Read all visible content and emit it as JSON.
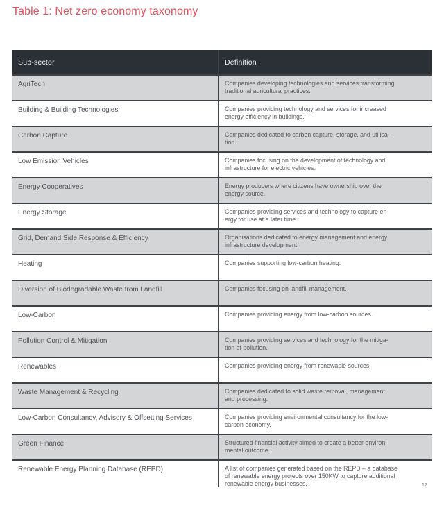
{
  "page": {
    "title": "Table 1: Net zero economy taxonomy",
    "page_number": "12"
  },
  "colors": {
    "accent_title": "#e94b57",
    "header_bg": "#2b3036",
    "header_text": "#eef0f1",
    "row_shaded_bg": "#d4d5d6",
    "row_border": "#3f4246",
    "body_text": "#5a5c60"
  },
  "table": {
    "columns": [
      "Sub-sector",
      "Definition"
    ],
    "rows": [
      {
        "subsector": "AgriTech",
        "definition": "Companies developing technologies and services transforming\ntraditional agricultural practices."
      },
      {
        "subsector": "Building & Building Technologies",
        "definition": "Companies providing technology and services for increased\nenergy efficiency in buildings."
      },
      {
        "subsector": "Carbon Capture",
        "definition": "Companies dedicated to carbon capture, storage, and utilisa-\ntion."
      },
      {
        "subsector": "Low Emission Vehicles",
        "definition": "Companies focusing on the development of technology and\ninfrastructure for electric vehicles."
      },
      {
        "subsector": "Energy Cooperatives",
        "definition": "Energy producers where citizens have ownership over the\nenergy source."
      },
      {
        "subsector": "Energy Storage",
        "definition": "Companies providing services and technology to capture en-\nergy for use at a later time."
      },
      {
        "subsector": "Grid, Demand Side Response & Efficiency",
        "definition": "Organisations dedicated to energy management and energy\ninfrastructure development."
      },
      {
        "subsector": "Heating",
        "definition": "Companies supporting low-carbon heating."
      },
      {
        "subsector": "Diversion of Biodegradable Waste from Landfill",
        "definition": "Companies focusing on landfill management."
      },
      {
        "subsector": "Low-Carbon",
        "definition": "Companies providing energy from low-carbon sources."
      },
      {
        "subsector": "Pollution Control & Mitigation",
        "definition": "Companies providing services and technology for the mitiga-\ntion of pollution."
      },
      {
        "subsector": "Renewables",
        "definition": "Companies providing energy from renewable sources."
      },
      {
        "subsector": "Waste Management & Recycling",
        "definition": "Companies dedicated to solid waste removal, management\nand processing."
      },
      {
        "subsector": "Low-Carbon Consultancy, Advisory & Offsetting Services",
        "definition": "Companies providing environmental consultancy for the low-\ncarbon economy."
      },
      {
        "subsector": "Green Finance",
        "definition": "Structured financial activity aimed to create a better environ-\nmental outcome."
      },
      {
        "subsector": "Renewable Energy Planning Database (REPD)",
        "definition": "A list of companies generated based on the REPD – a database\nof renewable energy projects over 150KW to capture additional\nrenewable energy businesses."
      }
    ]
  }
}
